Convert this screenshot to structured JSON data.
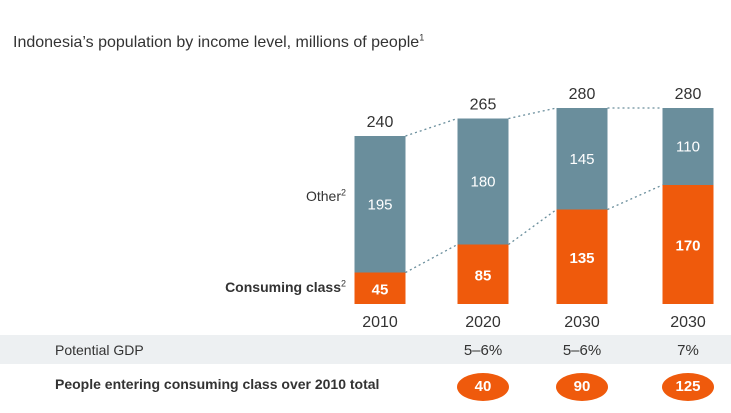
{
  "title": "Indonesia’s population by income level, millions of people",
  "title_footnote": "1",
  "colors": {
    "other": "#6a8e9c",
    "consuming": "#ef5a0c",
    "connector": "#6a8e9c",
    "row_band": "#edf0f2"
  },
  "series_labels": {
    "other": "Other",
    "other_footnote": "2",
    "consuming": "Consuming class",
    "consuming_footnote": "2"
  },
  "chart_data": {
    "type": "bar",
    "stacked": true,
    "title": "Indonesia’s population by income level, millions of people",
    "categories": [
      "2010",
      "2020",
      "2030",
      "2030"
    ],
    "series": [
      {
        "name": "Consuming class",
        "values": [
          45,
          85,
          135,
          170
        ]
      },
      {
        "name": "Other",
        "values": [
          195,
          180,
          145,
          110
        ]
      }
    ],
    "totals": [
      240,
      265,
      280,
      280
    ],
    "ylim": [
      0,
      280
    ],
    "legend": "left-inline",
    "grid": false
  },
  "table": {
    "gdp_label": "Potential GDP",
    "gdp_values": [
      "",
      "5–6%",
      "5–6%",
      "7%"
    ],
    "entering_label": "People entering consuming class over 2010 total",
    "entering_values": [
      "",
      "40",
      "90",
      "125"
    ]
  }
}
